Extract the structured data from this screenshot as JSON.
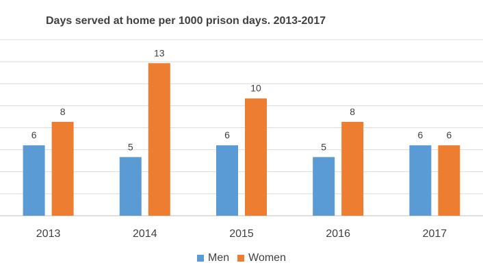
{
  "chart_data": {
    "type": "bar",
    "title": "Days served at home per 1000 prison days. 2013-2017",
    "categories": [
      "2013",
      "2014",
      "2015",
      "2016",
      "2017"
    ],
    "series": [
      {
        "name": "Men",
        "color": "#5b9bd5",
        "values": [
          6,
          5,
          6,
          5,
          6
        ],
        "labels": [
          "6",
          "5",
          "6",
          "5",
          "6"
        ]
      },
      {
        "name": "Women",
        "color": "#ed7d31",
        "values": [
          8,
          13,
          10,
          8,
          6
        ],
        "labels": [
          "8",
          "13",
          "10",
          "8",
          "6"
        ]
      }
    ],
    "ylim": [
      0,
      15
    ],
    "grid": true,
    "legend": "bottom"
  }
}
